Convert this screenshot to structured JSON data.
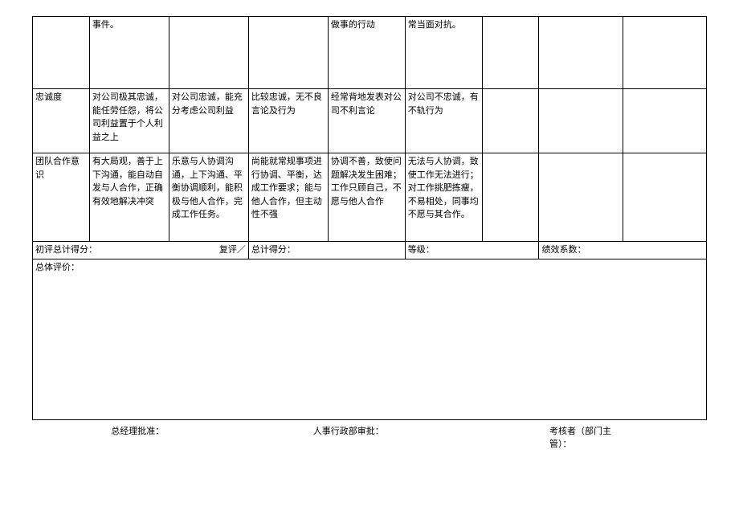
{
  "rows": {
    "r1": {
      "label": "",
      "a": "事件。",
      "b": "",
      "c": "",
      "d": "做事的行动",
      "e": "常当面对抗。",
      "f": "",
      "g": "",
      "h": ""
    },
    "r2": {
      "label": "忠诚度",
      "a": "对公司极其忠诚，能任劳任怨，将公司利益置于个人利益之上",
      "b": "对公司忠诚，能充分考虑公司利益",
      "c": "比较忠诚，无不良言论及行为",
      "d": "经常背地发表对公司不利言论",
      "e": "对公司不忠诚，有不轨行为",
      "f": "",
      "g": "",
      "h": ""
    },
    "r3": {
      "label": "团队合作意识",
      "a": "有大局观，善于上下沟通，能自动自发与人合作，正确有效地解决冲突",
      "b": "乐意与人协调沟通，上下沟通、平衡协调顺利，能积极与他人合作，完成工作任务。",
      "c": "尚能就常规事项进行协调、平衡，达成工作要求；能与他人合作，但主动性不强",
      "d": "协调不善，致使问题解决发生困难；工作只顾自己，不愿与他人合作",
      "e": "无法与人协调，致使工作无法进行；对工作挑肥拣瘦，不易相处，同事均不愿与其合作。",
      "f": "",
      "g": "",
      "h": ""
    }
  },
  "score": {
    "initLabel": "初评总计得分：",
    "reLabel": "复评／",
    "totalLabel": "总计得分：",
    "gradeLabel": "等级：",
    "coeffLabel": "绩效系数："
  },
  "overallLabel": "总体评价：",
  "signatures": {
    "gm": "总经理批准：",
    "hr": "人事行政部审批：",
    "assessor1": "考核者（部门主",
    "assessor2": "管）："
  }
}
